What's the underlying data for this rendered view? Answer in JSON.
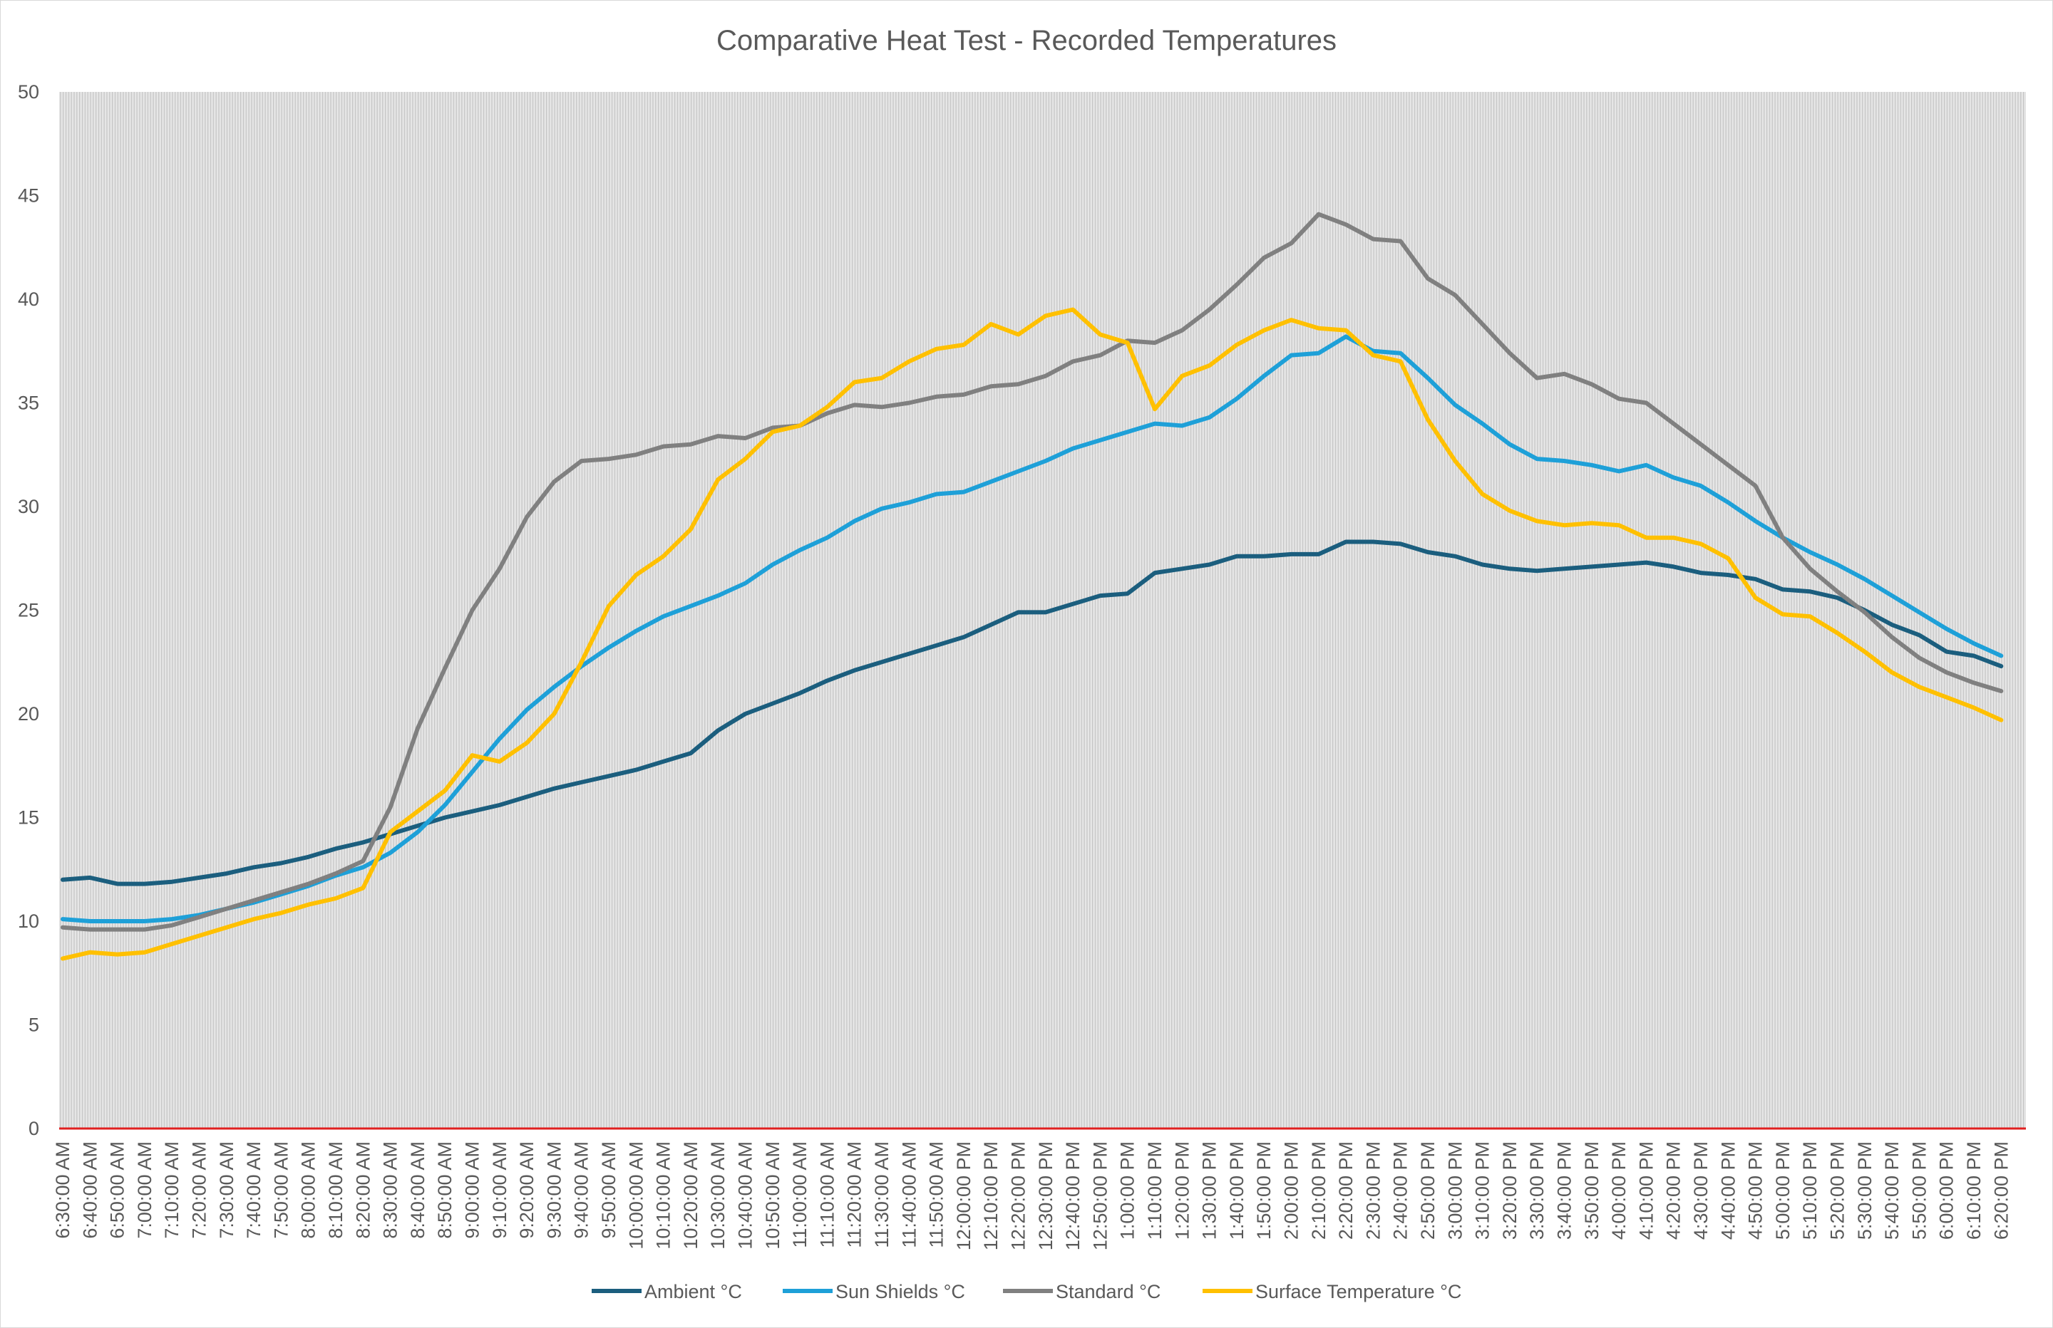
{
  "chart_data": {
    "type": "line",
    "title": "Comparative Heat Test - Recorded Temperatures",
    "xlabel": "",
    "ylabel": "",
    "ylim": [
      0,
      50
    ],
    "yticks": [
      0,
      5,
      10,
      15,
      20,
      25,
      30,
      35,
      40,
      45,
      50
    ],
    "grid": "vertical gridlines at every data point",
    "legend_position": "bottom",
    "x": [
      "6:30:00 AM",
      "6:40:00 AM",
      "6:50:00 AM",
      "7:00:00 AM",
      "7:10:00 AM",
      "7:20:00 AM",
      "7:30:00 AM",
      "7:40:00 AM",
      "7:50:00 AM",
      "8:00:00 AM",
      "8:10:00 AM",
      "8:20:00 AM",
      "8:30:00 AM",
      "8:40:00 AM",
      "8:50:00 AM",
      "9:00:00 AM",
      "9:10:00 AM",
      "9:20:00 AM",
      "9:30:00 AM",
      "9:40:00 AM",
      "9:50:00 AM",
      "10:00:00 AM",
      "10:10:00 AM",
      "10:20:00 AM",
      "10:30:00 AM",
      "10:40:00 AM",
      "10:50:00 AM",
      "11:00:00 AM",
      "11:10:00 AM",
      "11:20:00 AM",
      "11:30:00 AM",
      "11:40:00 AM",
      "11:50:00 AM",
      "12:00:00 PM",
      "12:10:00 PM",
      "12:20:00 PM",
      "12:30:00 PM",
      "12:40:00 PM",
      "12:50:00 PM",
      "1:00:00 PM",
      "1:10:00 PM",
      "1:20:00 PM",
      "1:30:00 PM",
      "1:40:00 PM",
      "1:50:00 PM",
      "2:00:00 PM",
      "2:10:00 PM",
      "2:20:00 PM",
      "2:30:00 PM",
      "2:40:00 PM",
      "2:50:00 PM",
      "3:00:00 PM",
      "3:10:00 PM",
      "3:20:00 PM",
      "3:30:00 PM",
      "3:40:00 PM",
      "3:50:00 PM",
      "4:00:00 PM",
      "4:10:00 PM",
      "4:20:00 PM",
      "4:30:00 PM",
      "4:40:00 PM",
      "4:50:00 PM",
      "5:00:00 PM",
      "5:10:00 PM",
      "5:20:00 PM",
      "5:30:00 PM",
      "5:40:00 PM",
      "5:50:00 PM",
      "6:00:00 PM",
      "6:10:00 PM",
      "6:20:00 PM"
    ],
    "series": [
      {
        "name": "Ambient °C",
        "color": "#1b5e7e",
        "values": [
          12.0,
          12.1,
          11.8,
          11.8,
          11.9,
          12.1,
          12.3,
          12.6,
          12.8,
          13.1,
          13.5,
          13.8,
          14.2,
          14.6,
          15.0,
          15.3,
          15.6,
          16.0,
          16.4,
          16.7,
          17.0,
          17.3,
          17.7,
          18.1,
          19.2,
          20.0,
          20.5,
          21.0,
          21.6,
          22.1,
          22.5,
          22.9,
          23.3,
          23.7,
          24.3,
          24.9,
          24.9,
          25.3,
          25.7,
          25.8,
          26.8,
          27.0,
          27.2,
          27.6,
          27.6,
          27.7,
          27.7,
          28.3,
          28.3,
          28.2,
          27.8,
          27.6,
          27.2,
          27.0,
          26.9,
          27.0,
          27.1,
          27.2,
          27.3,
          27.1,
          26.8,
          26.7,
          26.5,
          26.0,
          25.9,
          25.6,
          25.0,
          24.3,
          23.8,
          23.0,
          22.8,
          22.3
        ]
      },
      {
        "name": "Sun Shields °C",
        "color": "#1ea0d8",
        "values": [
          10.1,
          10.0,
          10.0,
          10.0,
          10.1,
          10.3,
          10.6,
          10.9,
          11.3,
          11.7,
          12.2,
          12.6,
          13.3,
          14.3,
          15.6,
          17.2,
          18.8,
          20.2,
          21.3,
          22.3,
          23.2,
          24.0,
          24.7,
          25.2,
          25.7,
          26.3,
          27.2,
          27.9,
          28.5,
          29.3,
          29.9,
          30.2,
          30.6,
          30.7,
          31.2,
          31.7,
          32.2,
          32.8,
          33.2,
          33.6,
          34.0,
          33.9,
          34.3,
          35.2,
          36.3,
          37.3,
          37.4,
          38.2,
          37.5,
          37.4,
          36.2,
          34.9,
          34.0,
          33.0,
          32.3,
          32.2,
          32.0,
          31.7,
          32.0,
          31.4,
          31.0,
          30.2,
          29.3,
          28.5,
          27.8,
          27.2,
          26.5,
          25.7,
          24.9,
          24.1,
          23.4,
          22.8
        ]
      },
      {
        "name": "Standard °C",
        "color": "#808080",
        "values": [
          9.7,
          9.6,
          9.6,
          9.6,
          9.8,
          10.2,
          10.6,
          11.0,
          11.4,
          11.8,
          12.3,
          12.9,
          15.5,
          19.3,
          22.2,
          25.0,
          27.0,
          29.5,
          31.2,
          32.2,
          32.3,
          32.5,
          32.9,
          33.0,
          33.4,
          33.3,
          33.8,
          33.9,
          34.5,
          34.9,
          34.8,
          35.0,
          35.3,
          35.4,
          35.8,
          35.9,
          36.3,
          37.0,
          37.3,
          38.0,
          37.9,
          38.5,
          39.5,
          40.7,
          42.0,
          42.7,
          44.1,
          43.6,
          42.9,
          42.8,
          41.0,
          40.2,
          38.8,
          37.4,
          36.2,
          36.4,
          35.9,
          35.2,
          35.0,
          34.0,
          33.0,
          32.0,
          31.0,
          28.5,
          27.0,
          25.9,
          24.9,
          23.7,
          22.7,
          22.0,
          21.5,
          21.1
        ]
      },
      {
        "name": "Surface Temperature °C",
        "color": "#ffc000",
        "values": [
          8.2,
          8.5,
          8.4,
          8.5,
          8.9,
          9.3,
          9.7,
          10.1,
          10.4,
          10.8,
          11.1,
          11.6,
          14.3,
          15.3,
          16.3,
          18.0,
          17.7,
          18.6,
          20.0,
          22.5,
          25.2,
          26.7,
          27.6,
          28.9,
          31.3,
          32.3,
          33.6,
          33.9,
          34.8,
          36.0,
          36.2,
          37.0,
          37.6,
          37.8,
          38.8,
          38.3,
          39.2,
          39.5,
          38.3,
          37.9,
          34.7,
          36.3,
          36.8,
          37.8,
          38.5,
          39.0,
          38.6,
          38.5,
          37.3,
          37.0,
          34.2,
          32.2,
          30.6,
          29.8,
          29.3,
          29.1,
          29.2,
          29.1,
          28.5,
          28.5,
          28.2,
          27.5,
          25.6,
          24.8,
          24.7,
          23.9,
          23.0,
          22.0,
          21.3,
          20.8,
          20.3,
          19.7
        ]
      }
    ],
    "zero_line_color": "#e02020",
    "plot_background": "#e3e3e3"
  }
}
